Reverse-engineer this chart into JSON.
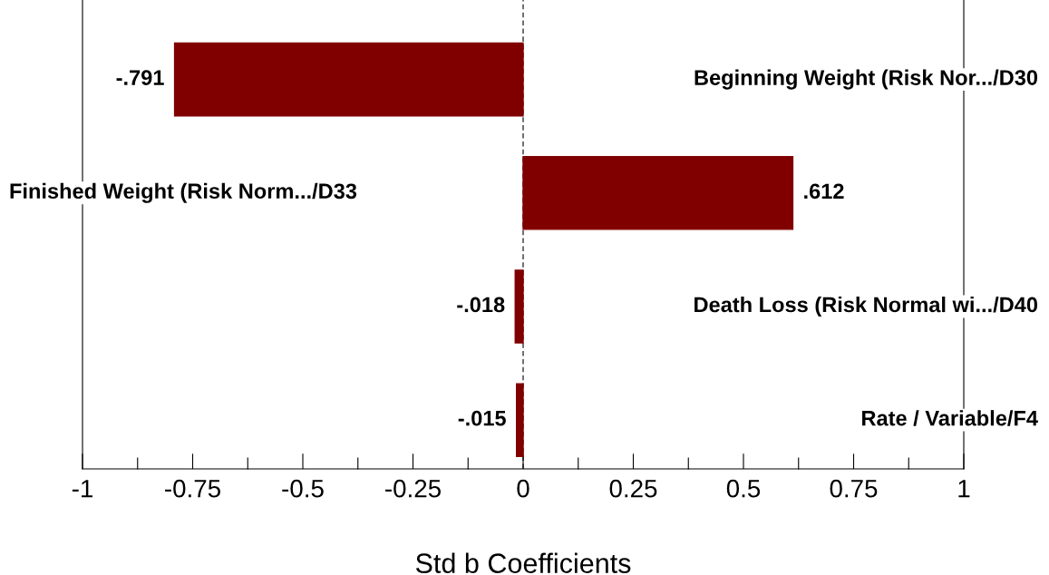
{
  "chart_data": {
    "type": "bar",
    "orientation": "horizontal",
    "xlabel": "Std b Coefficients",
    "categories": [
      "Beginning Weight (Risk Nor.../D30",
      "Finished Weight (Risk Norm.../D33",
      "Death Loss (Risk Normal wi.../D40",
      "Rate / Variable/F4"
    ],
    "values": [
      -0.791,
      0.612,
      -0.018,
      -0.015
    ],
    "value_labels": [
      "-.791",
      ".612",
      "-.018",
      "-.015"
    ],
    "color": "#800000",
    "xlim": [
      -1,
      1
    ],
    "xticks": [
      -1,
      {
        "value": -0.875,
        "label": null
      },
      -0.75,
      {
        "value": -0.625,
        "label": null
      },
      -0.5,
      {
        "value": -0.375,
        "label": null
      },
      -0.25,
      {
        "value": -0.125,
        "label": null
      },
      0,
      {
        "value": 0.125,
        "label": null
      },
      0.25,
      {
        "value": 0.375,
        "label": null
      },
      0.5,
      {
        "value": 0.625,
        "label": null
      },
      0.75,
      {
        "value": 0.875,
        "label": null
      },
      1
    ],
    "ref_lines": [
      {
        "axis": "x",
        "value": 0,
        "line_style": "dashed",
        "color": "#000000"
      }
    ],
    "tick_labels": "x",
    "grid": false,
    "legend": false
  }
}
